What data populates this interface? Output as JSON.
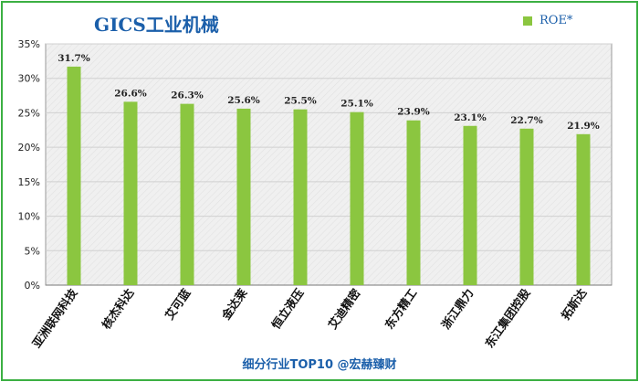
{
  "chart_data": {
    "type": "bar",
    "title": "GICS工业机械",
    "categories": [
      "亚洲联网科技",
      "核杰科达",
      "艾可蓝",
      "金达莱",
      "恒立液压",
      "艾迪精密",
      "东方精工",
      "浙江鼎力",
      "东江集团控股",
      "拓斯达"
    ],
    "series": [
      {
        "name": "ROE*",
        "values": [
          31.7,
          26.6,
          26.3,
          25.6,
          25.5,
          25.1,
          23.9,
          23.1,
          22.7,
          21.9
        ]
      }
    ],
    "data_labels": [
      "31.7%",
      "26.6%",
      "26.3%",
      "25.6%",
      "25.5%",
      "25.1%",
      "23.9%",
      "23.1%",
      "22.7%",
      "21.9%"
    ],
    "ylim": [
      0,
      35
    ],
    "yticks": [
      0,
      5,
      10,
      15,
      20,
      25,
      30,
      35
    ],
    "ytick_labels": [
      "0%",
      "5%",
      "10%",
      "15%",
      "20%",
      "25%",
      "30%",
      "35%"
    ],
    "xlabel": "",
    "ylabel": "",
    "legend_position": "top-right",
    "grid": true
  },
  "footer": "细分行业TOP10 @宏赫臻财",
  "colors": {
    "bar": "#8bc640",
    "border": "#3cb043",
    "title": "#1b5faa",
    "grid": "#d0d0d0",
    "plot_bg": "#f0f0f0"
  }
}
